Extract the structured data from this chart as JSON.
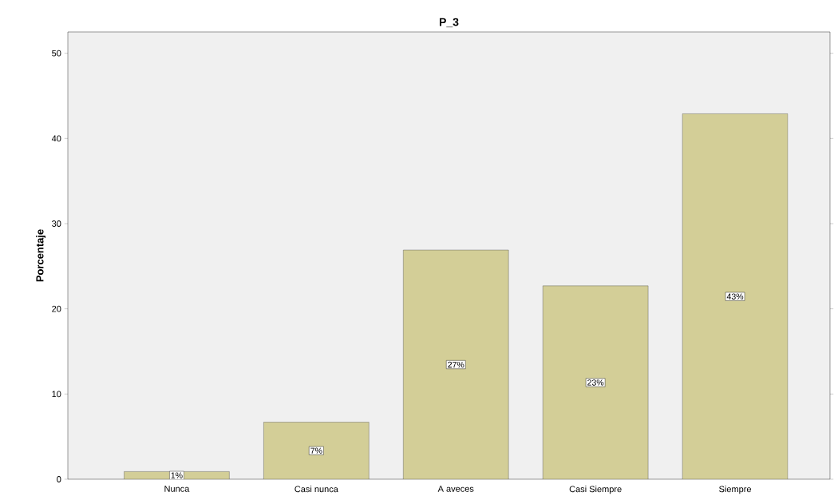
{
  "chart_data": {
    "type": "bar",
    "title": "P_3",
    "ylabel": "Porcentaje",
    "categories": [
      "Nunca",
      "Casi nunca",
      "A aveces",
      "Casi Siempre",
      "Siempre"
    ],
    "values": [
      0.9,
      6.7,
      26.9,
      22.7,
      42.9
    ],
    "value_labels": [
      "1%",
      "7%",
      "27%",
      "23%",
      "43%"
    ],
    "color": "#d3ce97",
    "ylim": [
      0,
      52.5
    ],
    "yticks": [
      0,
      10,
      20,
      30,
      40,
      50
    ],
    "grid": false
  }
}
